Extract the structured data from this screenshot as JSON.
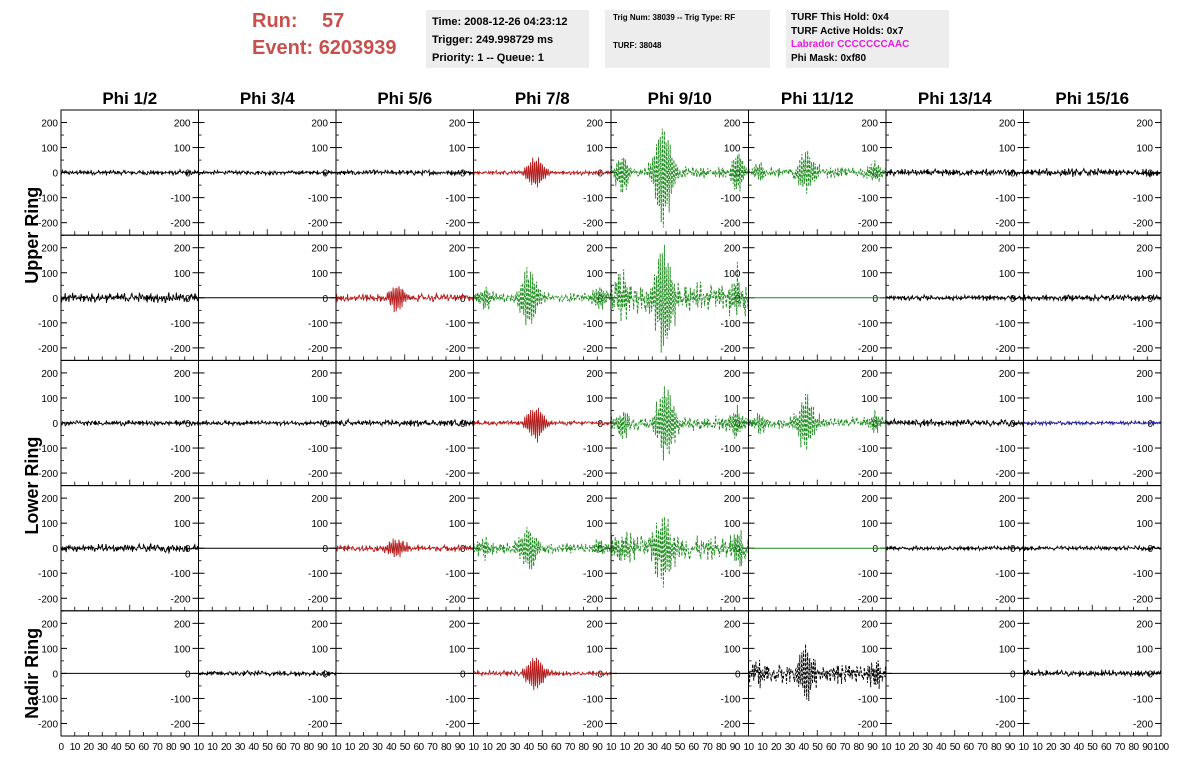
{
  "header": {
    "run_label": "Run:",
    "run_value": "57",
    "event_label": "Event:",
    "event_value": "6203939",
    "time": "Time: 2008-12-26 04:23:12",
    "trigger": "Trigger: 249.998729 ms",
    "priority": "Priority: 1 -- Queue: 1",
    "trig_num": "Trig Num: 38039 -- Trig Type: RF",
    "turf": "TURF: 38048",
    "turf_this_hold": "TURF This Hold: 0x4",
    "turf_active_holds": "TURF Active Holds: 0x7",
    "labrador": "Labrador CCCCCCCAAC",
    "phi_mask": "Phi Mask: 0xf80"
  },
  "colors": {
    "header_red": "#c8504c",
    "info_bg": "#ededed",
    "labrador": "#e01ee0",
    "trace_black": "#000000",
    "trace_red": "#b41e1e",
    "trace_green": "#1e8c1e",
    "trace_blue": "#1e1e96"
  },
  "chart_data": {
    "type": "line",
    "columns": [
      "Phi 1/2",
      "Phi 3/4",
      "Phi 5/6",
      "Phi 7/8",
      "Phi 9/10",
      "Phi 11/12",
      "Phi 13/14",
      "Phi 15/16"
    ],
    "rows": [
      "Upper Ring",
      "Upper Ring",
      "Lower Ring",
      "Lower Ring",
      "Nadir Ring"
    ],
    "row_labels": [
      "Upper Ring",
      "Lower Ring",
      "Nadir Ring"
    ],
    "xlim": [
      0,
      100
    ],
    "ylim": [
      -250,
      250
    ],
    "xticks": [
      "0",
      "10",
      "20",
      "30",
      "40",
      "50",
      "60",
      "70",
      "80",
      "90",
      "10",
      "10",
      "20",
      "30",
      "40",
      "50",
      "60",
      "70",
      "80",
      "90",
      "10",
      "10",
      "20",
      "30",
      "40",
      "50",
      "60",
      "70",
      "80",
      "90",
      "10",
      "10",
      "20",
      "30",
      "40",
      "50",
      "60",
      "70",
      "80",
      "90",
      "10",
      "10",
      "20",
      "30",
      "40",
      "50",
      "60",
      "70",
      "80",
      "90",
      "10",
      "10",
      "20",
      "30",
      "40",
      "50",
      "60",
      "70",
      "80",
      "90",
      "10",
      "10",
      "20",
      "30",
      "40",
      "50",
      "60",
      "70",
      "80",
      "90",
      "10",
      "10",
      "20",
      "30",
      "40",
      "50",
      "60",
      "70",
      "80",
      "90",
      "100"
    ],
    "yticks": [
      "200",
      "100",
      "0",
      "-100",
      "-200"
    ],
    "grid": false,
    "panels": [
      [
        {
          "style": "solid",
          "color": "black",
          "amp": 12
        },
        {
          "style": "solid",
          "color": "black",
          "amp": 10
        },
        {
          "style": "solid",
          "color": "black",
          "amp": 12
        },
        {
          "style": "solid",
          "color": "red",
          "amp": 10,
          "burst": 70,
          "center": 45
        },
        {
          "style": "dashed",
          "color": "green",
          "amp": 25,
          "burst": 230,
          "center": 38
        },
        {
          "style": "dashed",
          "color": "green",
          "amp": 25,
          "burst": 90,
          "center": 42
        },
        {
          "style": "solid",
          "color": "black",
          "amp": 16
        },
        {
          "style": "solid",
          "color": "black",
          "amp": 18
        }
      ],
      [
        {
          "style": "solid",
          "color": "black",
          "amp": 22
        },
        {
          "style": "flat",
          "color": "black"
        },
        {
          "style": "solid",
          "color": "red",
          "amp": 18,
          "burst": 60,
          "center": 44
        },
        {
          "style": "dashed",
          "color": "green",
          "amp": 22,
          "burst": 130,
          "center": 40
        },
        {
          "style": "dashed",
          "color": "green",
          "amp": 70,
          "burst": 230,
          "center": 38
        },
        {
          "style": "flat",
          "color": "green"
        },
        {
          "style": "solid",
          "color": "black",
          "amp": 12
        },
        {
          "style": "solid",
          "color": "black",
          "amp": 15
        }
      ],
      [
        {
          "style": "solid",
          "color": "black",
          "amp": 12
        },
        {
          "style": "solid",
          "color": "black",
          "amp": 10
        },
        {
          "style": "solid",
          "color": "black",
          "amp": 15
        },
        {
          "style": "solid",
          "color": "red",
          "amp": 10,
          "burst": 80,
          "center": 45
        },
        {
          "style": "dashed",
          "color": "green",
          "amp": 35,
          "burst": 150,
          "center": 40
        },
        {
          "style": "dashed",
          "color": "green",
          "amp": 28,
          "burst": 110,
          "center": 42
        },
        {
          "style": "solid",
          "color": "black",
          "amp": 16
        },
        {
          "style": "solid",
          "color": "blue",
          "amp": 10
        }
      ],
      [
        {
          "style": "solid",
          "color": "black",
          "amp": 18
        },
        {
          "style": "flat",
          "color": "black"
        },
        {
          "style": "solid",
          "color": "red",
          "amp": 15,
          "burst": 40,
          "center": 44
        },
        {
          "style": "dashed",
          "color": "green",
          "amp": 25,
          "burst": 100,
          "center": 40
        },
        {
          "style": "dashed",
          "color": "green",
          "amp": 55,
          "burst": 160,
          "center": 38
        },
        {
          "style": "flat",
          "color": "green"
        },
        {
          "style": "solid",
          "color": "black",
          "amp": 10
        },
        {
          "style": "solid",
          "color": "black",
          "amp": 10
        }
      ],
      [
        {
          "style": "flat",
          "color": "black"
        },
        {
          "style": "solid",
          "color": "black",
          "amp": 12
        },
        {
          "style": "flat",
          "color": "black"
        },
        {
          "style": "solid",
          "color": "red",
          "amp": 12,
          "burst": 75,
          "center": 45
        },
        {
          "style": "flat",
          "color": "black"
        },
        {
          "style": "dashed",
          "color": "black",
          "amp": 45,
          "burst": 120,
          "center": 42
        },
        {
          "style": "flat",
          "color": "black"
        },
        {
          "style": "solid",
          "color": "black",
          "amp": 15
        }
      ]
    ]
  }
}
